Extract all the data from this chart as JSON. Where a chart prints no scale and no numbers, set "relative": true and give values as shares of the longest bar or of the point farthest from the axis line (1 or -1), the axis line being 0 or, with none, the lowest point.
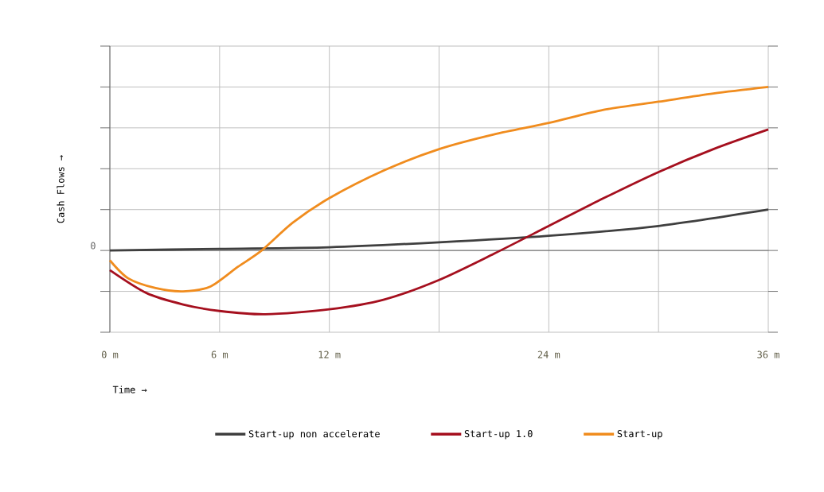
{
  "chart_data": {
    "type": "line",
    "relative": true,
    "xlabel": "Time →",
    "ylabel": "Cash Flows →",
    "xlim": [
      0,
      36
    ],
    "xticks": [
      {
        "value": 0,
        "label": "0 m"
      },
      {
        "value": 6,
        "label": "6 m"
      },
      {
        "value": 12,
        "label": "12 m"
      },
      {
        "value": 18,
        "label": null
      },
      {
        "value": 24,
        "label": "24 m"
      },
      {
        "value": 30,
        "label": null
      },
      {
        "value": 36,
        "label": "36 m"
      }
    ],
    "annotations": [
      "0"
    ],
    "grid": true,
    "legend": "bottom",
    "marker": "none",
    "line_style": "solid",
    "series": [
      {
        "name": "Start-up non accelerate",
        "color": "#3f3f3f",
        "x": [
          0,
          6,
          12,
          18,
          24,
          30,
          36
        ],
        "values": [
          0,
          0.01,
          0.02,
          0.05,
          0.09,
          0.15,
          0.25
        ]
      },
      {
        "name": "Start-up 1.0",
        "color": "#a50f1e",
        "x": [
          0,
          2,
          4,
          6,
          8.5,
          12,
          15,
          18,
          21,
          24,
          27,
          30,
          33,
          36
        ],
        "values": [
          -0.12,
          -0.26,
          -0.33,
          -0.37,
          -0.39,
          -0.36,
          -0.3,
          -0.18,
          -0.02,
          0.15,
          0.32,
          0.48,
          0.62,
          0.74
        ]
      },
      {
        "name": "Start-up",
        "color": "#f08c1e",
        "x": [
          0,
          1,
          2.5,
          4,
          5.5,
          7,
          8.3,
          10,
          12,
          15,
          18,
          21,
          24,
          27,
          30,
          33,
          36
        ],
        "values": [
          -0.06,
          -0.17,
          -0.23,
          -0.25,
          -0.22,
          -0.1,
          0,
          0.17,
          0.32,
          0.49,
          0.62,
          0.71,
          0.78,
          0.86,
          0.91,
          0.96,
          1.0
        ]
      }
    ]
  }
}
